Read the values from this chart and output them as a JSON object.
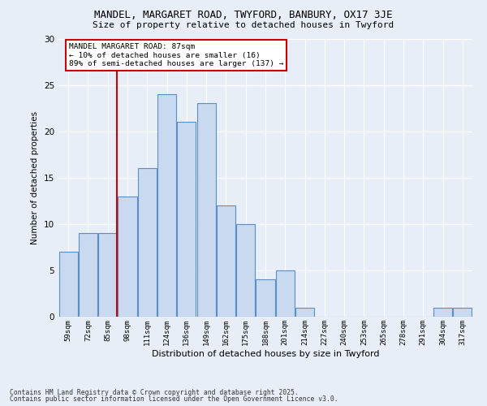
{
  "title1": "MANDEL, MARGARET ROAD, TWYFORD, BANBURY, OX17 3JE",
  "title2": "Size of property relative to detached houses in Twyford",
  "xlabel": "Distribution of detached houses by size in Twyford",
  "ylabel": "Number of detached properties",
  "categories": [
    "59sqm",
    "72sqm",
    "85sqm",
    "98sqm",
    "111sqm",
    "124sqm",
    "136sqm",
    "149sqm",
    "162sqm",
    "175sqm",
    "188sqm",
    "201sqm",
    "214sqm",
    "227sqm",
    "240sqm",
    "253sqm",
    "265sqm",
    "278sqm",
    "291sqm",
    "304sqm",
    "317sqm"
  ],
  "values": [
    7,
    9,
    9,
    13,
    16,
    24,
    21,
    23,
    12,
    10,
    4,
    5,
    1,
    0,
    0,
    0,
    0,
    0,
    0,
    1,
    1
  ],
  "bar_color": "#c9d9f0",
  "bar_edge_color": "#5a8fc4",
  "vline_index": 2,
  "vline_color": "#cc0000",
  "annotation_text": "MANDEL MARGARET ROAD: 87sqm\n← 10% of detached houses are smaller (16)\n89% of semi-detached houses are larger (137) →",
  "annotation_box_color": "#ffffff",
  "annotation_box_edge": "#cc0000",
  "ylim": [
    0,
    30
  ],
  "yticks": [
    0,
    5,
    10,
    15,
    20,
    25,
    30
  ],
  "footer1": "Contains HM Land Registry data © Crown copyright and database right 2025.",
  "footer2": "Contains public sector information licensed under the Open Government Licence v3.0.",
  "bg_color": "#e8eef8",
  "plot_bg_color": "#e8eef8"
}
